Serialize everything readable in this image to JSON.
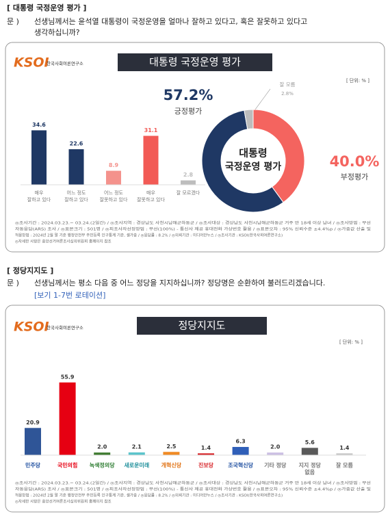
{
  "sections": [
    {
      "heading": "[ 대통령 국정운영 평가 ]",
      "question_label": "문 )",
      "question_lines": [
        "선생님께서는 윤석열 대통령이 국정운영을 얼마나 잘하고 있다고, 혹은 잘못하고 있다고",
        "생각하십니까?"
      ]
    },
    {
      "heading": "[ 정당지지도 ]",
      "question_label": "문 )",
      "question_lines": [
        "선생님께서는 평소 다음 중 어느 정당을 지지하십니까? 정당명은 순환하여 불러드리겠습니다."
      ],
      "rotation": "[보기 1-7번 로테이션]"
    }
  ],
  "chart_data": [
    {
      "type": "bar",
      "logo": "KSOI",
      "logo_sub": "한국사회여론연구소",
      "title": "대통령 국정운영 평가",
      "unit": "[ 단위: % ]",
      "categories": [
        [
          "매우",
          "잘하고 있다"
        ],
        [
          "어느 정도",
          "잘하고 있다"
        ],
        [
          "어느 정도",
          "잘못하고 있다"
        ],
        [
          "매우",
          "잘못하고 있다"
        ],
        [
          "잘 모르겠다"
        ]
      ],
      "values": [
        34.6,
        22.6,
        8.9,
        31.1,
        2.8
      ],
      "colors": [
        "#1f3864",
        "#1f3864",
        "#f4928c",
        "#f25a55",
        "#bdbdbd"
      ],
      "footnotes": [
        "◎조사기간 : 2024.03.23.~ 03.24.(2일간)  / ◎조사지역 : 경상남도 사천시남해군하동군  / ◎조사대상 : 경상남도 사천시남해군하동군 거주 만 18세 이상 남녀  / ◎조사방법 : 무선",
        "자동응답(ARS) 조사  / ◎표본크기 : 501명  / ◎피조사자선정방법 : 무선(100%) - 통신사 제공 휴대전화 가상번호 활용  / ◎표본오차 : 95% 신뢰수준 ±4.4%p  / ◎가중값 산출 및",
        "적용방법 : 2024년 2월 말 기준 행정안전부 주민등록 인구통계 기준, 셀가중  / ◎응답률 : 8.2%  / ◎의뢰기관 : 미디어만누스  / ◎조사기관 : KSOI(한국사회여론연구소)",
        "◎자세한 사항은 중앙선거여론조사심의위원회 홈페이지 참조"
      ]
    },
    {
      "type": "donut",
      "center_title": [
        "대통령",
        "국정운영 평가"
      ],
      "categories": [
        "부정평가",
        "긍정평가",
        "잘 모름"
      ],
      "values": [
        40.0,
        57.2,
        2.8
      ],
      "value_labels": [
        "40.0%",
        "57.2%",
        "2.8%"
      ],
      "colors": [
        "#f4645f",
        "#1f3864",
        "#bdbdbd"
      ]
    },
    {
      "type": "bar",
      "logo": "KSOI",
      "logo_sub": "한국사회여론연구소",
      "title": "정당지지도",
      "unit": "[ 단위: % ]",
      "categories": [
        [
          "민주당"
        ],
        [
          "국민의힘"
        ],
        [
          "녹색정의당"
        ],
        [
          "새로운미래"
        ],
        [
          "개혁신당"
        ],
        [
          "진보당"
        ],
        [
          "조국혁신당"
        ],
        [
          "기타 정당"
        ],
        [
          "지지 정당",
          "없음"
        ],
        [
          "잘 모름"
        ]
      ],
      "values": [
        20.9,
        55.9,
        2.0,
        2.1,
        2.5,
        1.4,
        6.3,
        2.0,
        5.6,
        1.4
      ],
      "value_labels": [
        "20.9",
        "55.9",
        "2.0",
        "2.1",
        "2.5",
        "1.4",
        "6.3",
        "2.0",
        "5.6",
        "1.4"
      ],
      "colors": [
        "#2f5597",
        "#e60012",
        "#3d7a2e",
        "#5cc4cc",
        "#f08a24",
        "#d7262b",
        "#2f5fb8",
        "#cbbfe3",
        "#595959",
        "#c8c8c8"
      ],
      "label_colors": [
        "#1f4fa0",
        "#e60012",
        "#2e7d32",
        "#1d8e9a",
        "#e07010",
        "#d7262b",
        "#1f4fa0",
        "#777777",
        "#777777",
        "#777777"
      ],
      "footnotes": [
        "◎조사기간 : 2024.03.23.~ 03.24.(2일간)  / ◎조사지역 : 경상남도 사천시남해군하동군  / ◎조사대상 : 경상남도 사천시남해군하동군 거주 만 18세 이상 남녀  / ◎조사방법 : 무선",
        "자동응답(ARS) 조사  / ◎표본크기 : 501명  / ◎피조사자선정방법 : 무선(100%) - 통신사 제공 휴대전화 가상번호 활용  / ◎표본오차 : 95% 신뢰수준 ±4.4%p  / ◎가중값 산출 및",
        "적용방법 : 2024년 2월 말 기준 행정안전부 주민등록 인구통계 기준, 셀가중  / ◎응답률 : 8.2%  / ◎의뢰기관 : 미디어만누스  / ◎조사기관 : KSOI(한국사회여론연구소)",
        "◎자세한 사항은 중앙선거여론조사심의위원회 홈페이지 참조"
      ]
    }
  ]
}
